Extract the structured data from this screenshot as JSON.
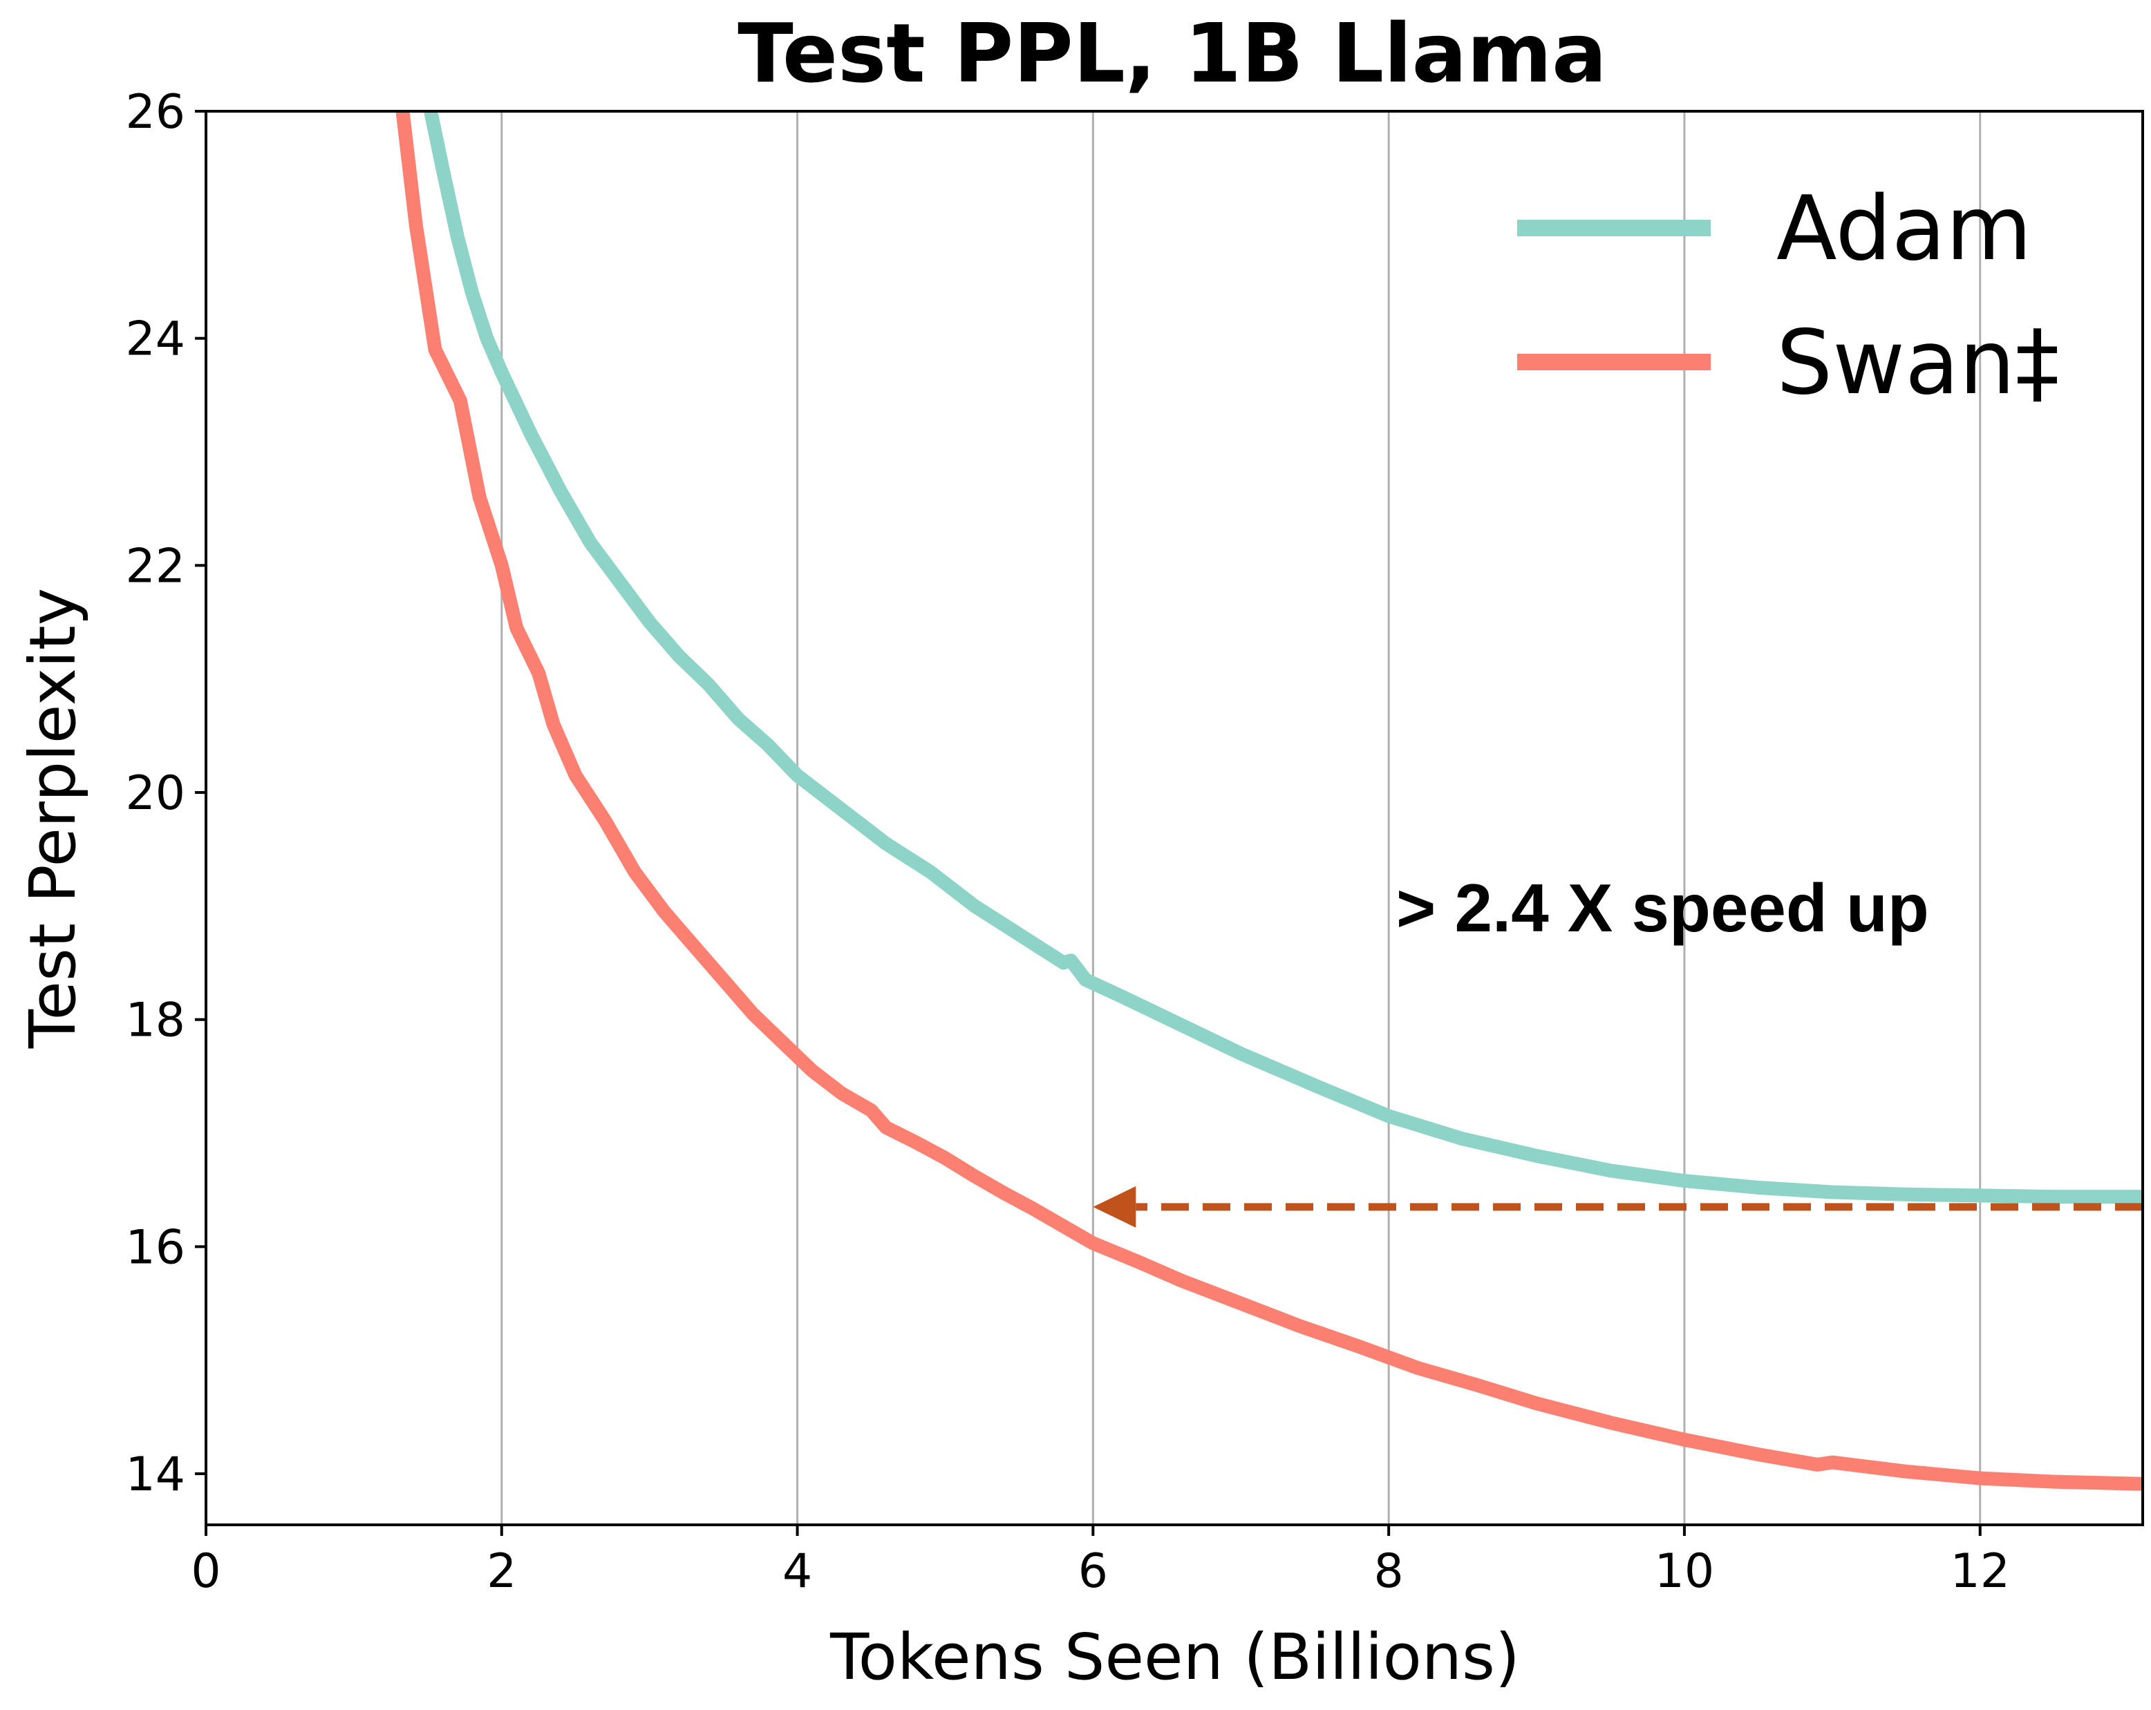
{
  "chart_data": {
    "type": "line",
    "title": "Test PPL, 1B Llama",
    "xlabel": "Tokens Seen (Billions)",
    "ylabel": "Test Perplexity",
    "xlim": [
      0,
      13.1
    ],
    "ylim": [
      13.55,
      26.0
    ],
    "xticks": [
      0,
      2,
      4,
      6,
      8,
      10,
      12
    ],
    "yticks": [
      14,
      16,
      18,
      20,
      22,
      24,
      26
    ],
    "grid": "vertical",
    "legend": "top-right",
    "series": [
      {
        "name": "Adam",
        "color": "#8dd3c7",
        "points": [
          [
            1.52,
            26.0
          ],
          [
            1.6,
            25.5
          ],
          [
            1.7,
            24.9
          ],
          [
            1.8,
            24.4
          ],
          [
            1.9,
            24.0
          ],
          [
            2.0,
            23.7
          ],
          [
            2.2,
            23.15
          ],
          [
            2.4,
            22.65
          ],
          [
            2.6,
            22.2
          ],
          [
            2.8,
            21.85
          ],
          [
            3.0,
            21.5
          ],
          [
            3.2,
            21.2
          ],
          [
            3.4,
            20.95
          ],
          [
            3.6,
            20.65
          ],
          [
            3.8,
            20.42
          ],
          [
            4.0,
            20.15
          ],
          [
            4.3,
            19.85
          ],
          [
            4.6,
            19.55
          ],
          [
            4.9,
            19.3
          ],
          [
            5.2,
            19.0
          ],
          [
            5.5,
            18.75
          ],
          [
            5.8,
            18.5
          ],
          [
            5.85,
            18.52
          ],
          [
            5.95,
            18.35
          ],
          [
            6.2,
            18.2
          ],
          [
            6.6,
            17.95
          ],
          [
            7.0,
            17.7
          ],
          [
            7.5,
            17.42
          ],
          [
            8.0,
            17.15
          ],
          [
            8.5,
            16.95
          ],
          [
            9.0,
            16.8
          ],
          [
            9.5,
            16.67
          ],
          [
            10.0,
            16.58
          ],
          [
            10.5,
            16.52
          ],
          [
            11.0,
            16.48
          ],
          [
            11.5,
            16.46
          ],
          [
            12.0,
            16.45
          ],
          [
            12.5,
            16.44
          ],
          [
            13.1,
            16.44
          ]
        ]
      },
      {
        "name": "Swan‡",
        "color": "#fb8072",
        "points": [
          [
            1.33,
            26.0
          ],
          [
            1.42,
            25.0
          ],
          [
            1.55,
            23.9
          ],
          [
            1.72,
            23.45
          ],
          [
            1.85,
            22.6
          ],
          [
            2.0,
            22.0
          ],
          [
            2.1,
            21.45
          ],
          [
            2.25,
            21.05
          ],
          [
            2.35,
            20.6
          ],
          [
            2.5,
            20.15
          ],
          [
            2.7,
            19.75
          ],
          [
            2.9,
            19.3
          ],
          [
            3.1,
            18.95
          ],
          [
            3.3,
            18.65
          ],
          [
            3.5,
            18.35
          ],
          [
            3.7,
            18.05
          ],
          [
            3.9,
            17.8
          ],
          [
            4.1,
            17.55
          ],
          [
            4.3,
            17.35
          ],
          [
            4.5,
            17.2
          ],
          [
            4.6,
            17.05
          ],
          [
            4.8,
            16.92
          ],
          [
            5.0,
            16.78
          ],
          [
            5.2,
            16.62
          ],
          [
            5.4,
            16.47
          ],
          [
            5.6,
            16.33
          ],
          [
            5.8,
            16.18
          ],
          [
            6.0,
            16.03
          ],
          [
            6.3,
            15.87
          ],
          [
            6.6,
            15.7
          ],
          [
            7.0,
            15.5
          ],
          [
            7.4,
            15.3
          ],
          [
            7.8,
            15.12
          ],
          [
            8.2,
            14.93
          ],
          [
            8.6,
            14.78
          ],
          [
            9.0,
            14.62
          ],
          [
            9.5,
            14.45
          ],
          [
            10.0,
            14.3
          ],
          [
            10.5,
            14.17
          ],
          [
            10.9,
            14.08
          ],
          [
            11.0,
            14.1
          ],
          [
            11.5,
            14.02
          ],
          [
            12.0,
            13.96
          ],
          [
            12.5,
            13.93
          ],
          [
            13.1,
            13.91
          ]
        ]
      }
    ],
    "annotation": {
      "text": "> 2.4 X speed up",
      "arrow_from": [
        13.1,
        16.35
      ],
      "arrow_to": [
        6.0,
        16.35
      ],
      "color": "#c0531c"
    }
  }
}
